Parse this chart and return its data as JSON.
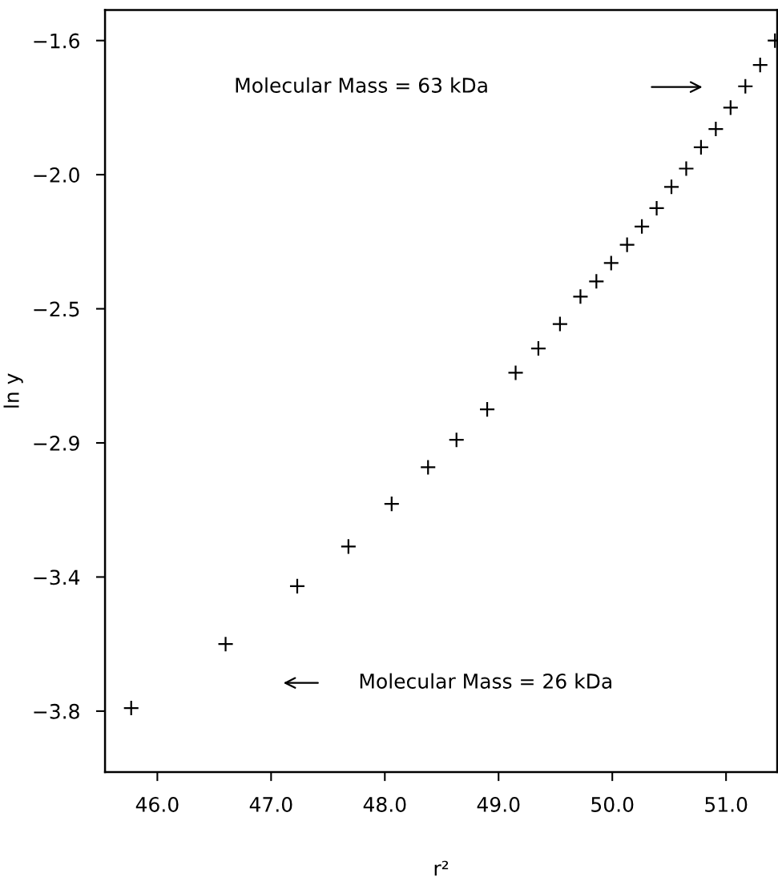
{
  "chart_data": {
    "type": "scatter",
    "xlabel": "r²",
    "ylabel": "ln y",
    "marker": "cross",
    "grid": false,
    "legend": false,
    "x": [
      45.77,
      46.6,
      47.23,
      47.68,
      48.06,
      48.38,
      48.63,
      48.9,
      49.15,
      49.35,
      49.54,
      49.72,
      49.86,
      49.99,
      50.13,
      50.26,
      50.39,
      50.52,
      50.65,
      50.78,
      50.91,
      51.04,
      51.17,
      51.3,
      51.43
    ],
    "values": [
      -3.79,
      -3.58,
      -3.39,
      -3.26,
      -3.12,
      -3.0,
      -2.91,
      -2.81,
      -2.69,
      -2.61,
      -2.53,
      -2.44,
      -2.39,
      -2.33,
      -2.27,
      -2.21,
      -2.15,
      -2.08,
      -2.02,
      -1.95,
      -1.89,
      -1.82,
      -1.75,
      -1.68,
      -1.6
    ],
    "color": "#000000",
    "xlim": [
      45.54,
      51.45
    ],
    "ylim": [
      -4.0,
      -1.5
    ],
    "xticks": [
      {
        "value": 46,
        "label": "46.0"
      },
      {
        "value": 47,
        "label": "47.0"
      },
      {
        "value": 48,
        "label": "48.0"
      },
      {
        "value": 49,
        "label": "49.0"
      },
      {
        "value": 50,
        "label": "50.0"
      },
      {
        "value": 51,
        "label": "51.0"
      }
    ],
    "yticks": [
      {
        "value": -1.6,
        "label": "−1.6"
      },
      {
        "value": -2.04,
        "label": "−2.0"
      },
      {
        "value": -2.48,
        "label": "−2.5"
      },
      {
        "value": -2.92,
        "label": "−2.9"
      },
      {
        "value": -3.36,
        "label": "−3.4"
      },
      {
        "value": -3.8,
        "label": "−3.8"
      }
    ],
    "annotations": [
      "Molecular Mass = 63 kDa",
      "Molecular Mass = 26 kDa"
    ]
  }
}
